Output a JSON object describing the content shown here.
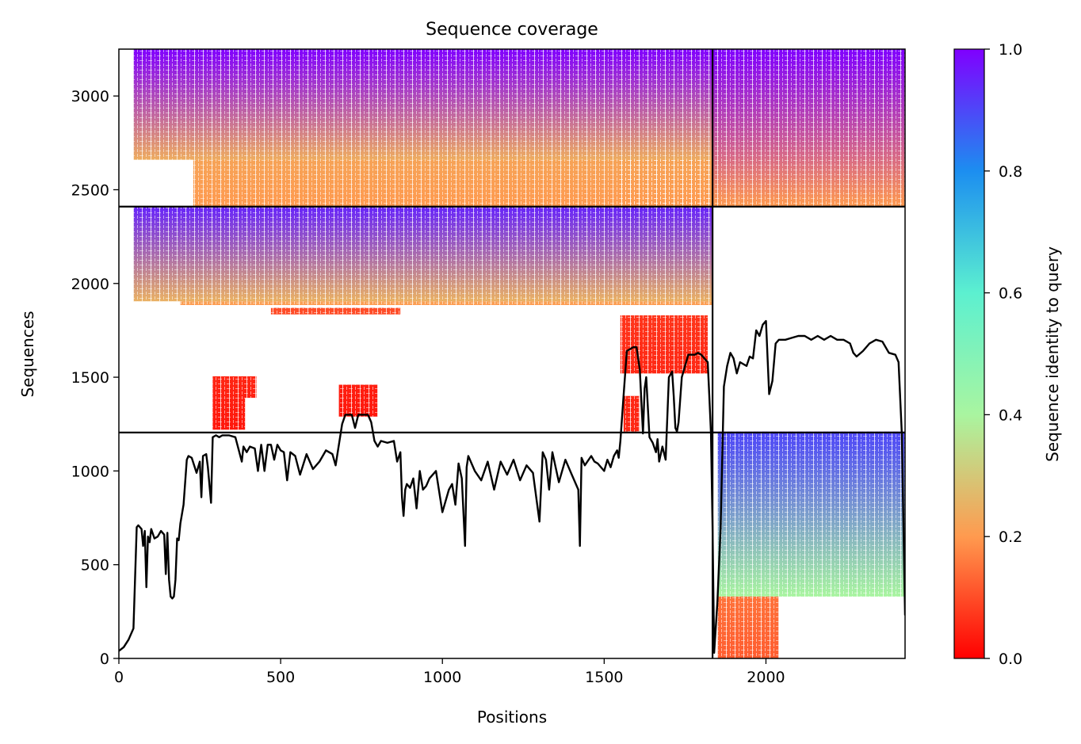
{
  "chart_data": {
    "type": "heatmap",
    "title": "Sequence coverage",
    "xlabel": "Positions",
    "ylabel": "Sequences",
    "xlim": [
      0,
      2430
    ],
    "ylim": [
      0,
      3250
    ],
    "x_ticks": [
      0,
      500,
      1000,
      1500,
      2000
    ],
    "y_ticks": [
      0,
      500,
      1000,
      1500,
      2000,
      2500,
      3000
    ],
    "grid": false,
    "colormap": "rainbow_r",
    "colorbar": {
      "label": "Sequence identity to query",
      "range": [
        0.0,
        1.0
      ],
      "ticks": [
        "0.0",
        "0.2",
        "0.4",
        "0.6",
        "0.8",
        "1.0"
      ]
    },
    "chain_boundary_position": 1835,
    "block_boundaries_sequences": [
      1205,
      2410
    ],
    "coverage_blocks": [
      {
        "x": [
          45,
          1835
        ],
        "y": [
          1905,
          2410
        ],
        "identity_top": 0.95,
        "identity_bottom": 0.25
      },
      {
        "x": [
          190,
          1835
        ],
        "y": [
          1885,
          1905
        ],
        "identity_top": 0.22,
        "identity_bottom": 0.2
      },
      {
        "x": [
          470,
          870
        ],
        "y": [
          1835,
          1870
        ],
        "identity_top": 0.1,
        "identity_bottom": 0.1
      },
      {
        "x": [
          1550,
          1820
        ],
        "y": [
          1520,
          1830
        ],
        "identity_top": 0.07,
        "identity_bottom": 0.05
      },
      {
        "x": [
          290,
          425
        ],
        "y": [
          1390,
          1505
        ],
        "identity_top": 0.05,
        "identity_bottom": 0.04
      },
      {
        "x": [
          290,
          390
        ],
        "y": [
          1220,
          1390
        ],
        "identity_top": 0.04,
        "identity_bottom": 0.03
      },
      {
        "x": [
          680,
          800
        ],
        "y": [
          1290,
          1460
        ],
        "identity_top": 0.04,
        "identity_bottom": 0.03
      },
      {
        "x": [
          1560,
          1610
        ],
        "y": [
          1210,
          1400
        ],
        "identity_top": 0.05,
        "identity_bottom": 0.05
      },
      {
        "x": [
          45,
          1835
        ],
        "y": [
          2660,
          3250
        ],
        "identity_top": 1.0,
        "identity_bottom": 0.24
      },
      {
        "x": [
          230,
          1835
        ],
        "y": [
          2410,
          2660
        ],
        "identity_top": 0.22,
        "identity_bottom": 0.2
      },
      {
        "x": [
          1550,
          1835
        ],
        "y": [
          2410,
          2660
        ],
        "identity_top": 0.22,
        "identity_bottom": 0.2
      },
      {
        "x": [
          1835,
          2430
        ],
        "y": [
          2410,
          3250
        ],
        "identity_top": 1.0,
        "identity_bottom": 0.2
      },
      {
        "x": [
          1835,
          2430
        ],
        "y": [
          1205,
          1210
        ],
        "identity_top": 0.95,
        "identity_bottom": 0.95
      },
      {
        "x": [
          1850,
          2430
        ],
        "y": [
          330,
          1205
        ],
        "identity_top": 0.9,
        "identity_bottom": 0.4
      },
      {
        "x": [
          1850,
          2040
        ],
        "y": [
          0,
          330
        ],
        "identity_top": 0.15,
        "identity_bottom": 0.12
      }
    ],
    "coverage_line": {
      "x": [
        0,
        15,
        30,
        45,
        55,
        60,
        70,
        75,
        80,
        85,
        90,
        95,
        100,
        110,
        120,
        130,
        140,
        145,
        150,
        155,
        160,
        165,
        170,
        175,
        180,
        185,
        190,
        200,
        210,
        215,
        225,
        240,
        250,
        255,
        260,
        270,
        275,
        285,
        290,
        300,
        310,
        320,
        340,
        360,
        380,
        385,
        395,
        405,
        420,
        430,
        440,
        450,
        460,
        470,
        480,
        490,
        500,
        510,
        520,
        530,
        545,
        560,
        580,
        600,
        620,
        640,
        660,
        670,
        680,
        690,
        700,
        720,
        730,
        740,
        750,
        770,
        780,
        790,
        800,
        810,
        830,
        850,
        860,
        870,
        875,
        880,
        885,
        890,
        900,
        910,
        920,
        930,
        940,
        950,
        960,
        980,
        1000,
        1020,
        1030,
        1040,
        1050,
        1060,
        1070,
        1075,
        1080,
        1100,
        1120,
        1140,
        1160,
        1180,
        1200,
        1220,
        1240,
        1260,
        1280,
        1300,
        1310,
        1320,
        1330,
        1340,
        1350,
        1360,
        1380,
        1400,
        1420,
        1425,
        1430,
        1440,
        1460,
        1470,
        1480,
        1500,
        1510,
        1520,
        1530,
        1540,
        1545,
        1550,
        1560,
        1570,
        1590,
        1600,
        1610,
        1620,
        1625,
        1630,
        1640,
        1650,
        1660,
        1665,
        1670,
        1680,
        1690,
        1700,
        1710,
        1715,
        1720,
        1725,
        1730,
        1740,
        1760,
        1780,
        1790,
        1800,
        1810,
        1820,
        1825,
        1830,
        1835,
        1840,
        1850,
        1860,
        1870,
        1880,
        1890,
        1900,
        1910,
        1920,
        1940,
        1950,
        1960,
        1970,
        1980,
        1990,
        2000,
        2010,
        2020,
        2030,
        2040,
        2060,
        2080,
        2100,
        2120,
        2140,
        2160,
        2180,
        2200,
        2220,
        2240,
        2260,
        2270,
        2280,
        2300,
        2320,
        2340,
        2360,
        2380,
        2400,
        2410,
        2420,
        2430
      ],
      "y": [
        40,
        60,
        100,
        160,
        700,
        710,
        690,
        600,
        680,
        380,
        650,
        620,
        690,
        640,
        650,
        680,
        660,
        450,
        670,
        420,
        330,
        320,
        330,
        420,
        640,
        630,
        720,
        820,
        1060,
        1080,
        1070,
        990,
        1050,
        860,
        1080,
        1090,
        1020,
        830,
        1180,
        1190,
        1180,
        1190,
        1190,
        1180,
        1050,
        1130,
        1100,
        1130,
        1120,
        1000,
        1140,
        1000,
        1140,
        1140,
        1060,
        1140,
        1110,
        1100,
        950,
        1100,
        1080,
        980,
        1090,
        1010,
        1050,
        1110,
        1090,
        1030,
        1140,
        1250,
        1300,
        1300,
        1230,
        1300,
        1300,
        1300,
        1260,
        1160,
        1130,
        1160,
        1150,
        1160,
        1050,
        1100,
        860,
        760,
        900,
        930,
        910,
        960,
        800,
        1000,
        900,
        920,
        960,
        1000,
        780,
        900,
        930,
        820,
        1040,
        960,
        600,
        1020,
        1080,
        1000,
        950,
        1050,
        900,
        1050,
        980,
        1060,
        950,
        1030,
        990,
        730,
        1100,
        1060,
        900,
        1100,
        1020,
        940,
        1060,
        980,
        900,
        600,
        1070,
        1030,
        1080,
        1050,
        1040,
        1000,
        1060,
        1020,
        1080,
        1110,
        1070,
        1160,
        1400,
        1640,
        1660,
        1660,
        1540,
        1200,
        1440,
        1500,
        1180,
        1150,
        1100,
        1170,
        1050,
        1130,
        1060,
        1500,
        1530,
        1400,
        1230,
        1210,
        1260,
        1500,
        1620,
        1620,
        1630,
        1620,
        1600,
        1580,
        1400,
        1200,
        700,
        30,
        300,
        700,
        1450,
        1560,
        1630,
        1600,
        1520,
        1580,
        1560,
        1610,
        1600,
        1750,
        1720,
        1780,
        1800,
        1410,
        1480,
        1680,
        1700,
        1700,
        1710,
        1720,
        1720,
        1700,
        1720,
        1700,
        1720,
        1700,
        1700,
        1680,
        1630,
        1610,
        1640,
        1680,
        1700,
        1690,
        1630,
        1620,
        1580,
        1200,
        230
      ]
    }
  }
}
